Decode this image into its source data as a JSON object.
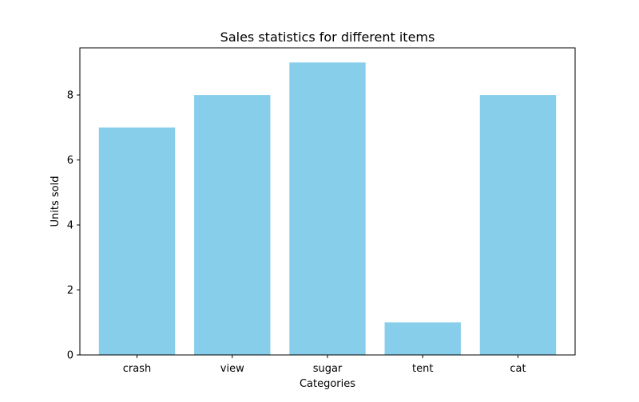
{
  "chart_data": {
    "type": "bar",
    "title": "Sales statistics for different items",
    "xlabel": "Categories",
    "ylabel": "Units sold",
    "categories": [
      "crash",
      "view",
      "sugar",
      "tent",
      "cat"
    ],
    "values": [
      7,
      8,
      9,
      1,
      8
    ],
    "ylim": [
      0,
      9.45
    ],
    "yticks": [
      0,
      2,
      4,
      6,
      8
    ],
    "bar_color": "#87CEEB",
    "grid": false,
    "legend": "none"
  }
}
